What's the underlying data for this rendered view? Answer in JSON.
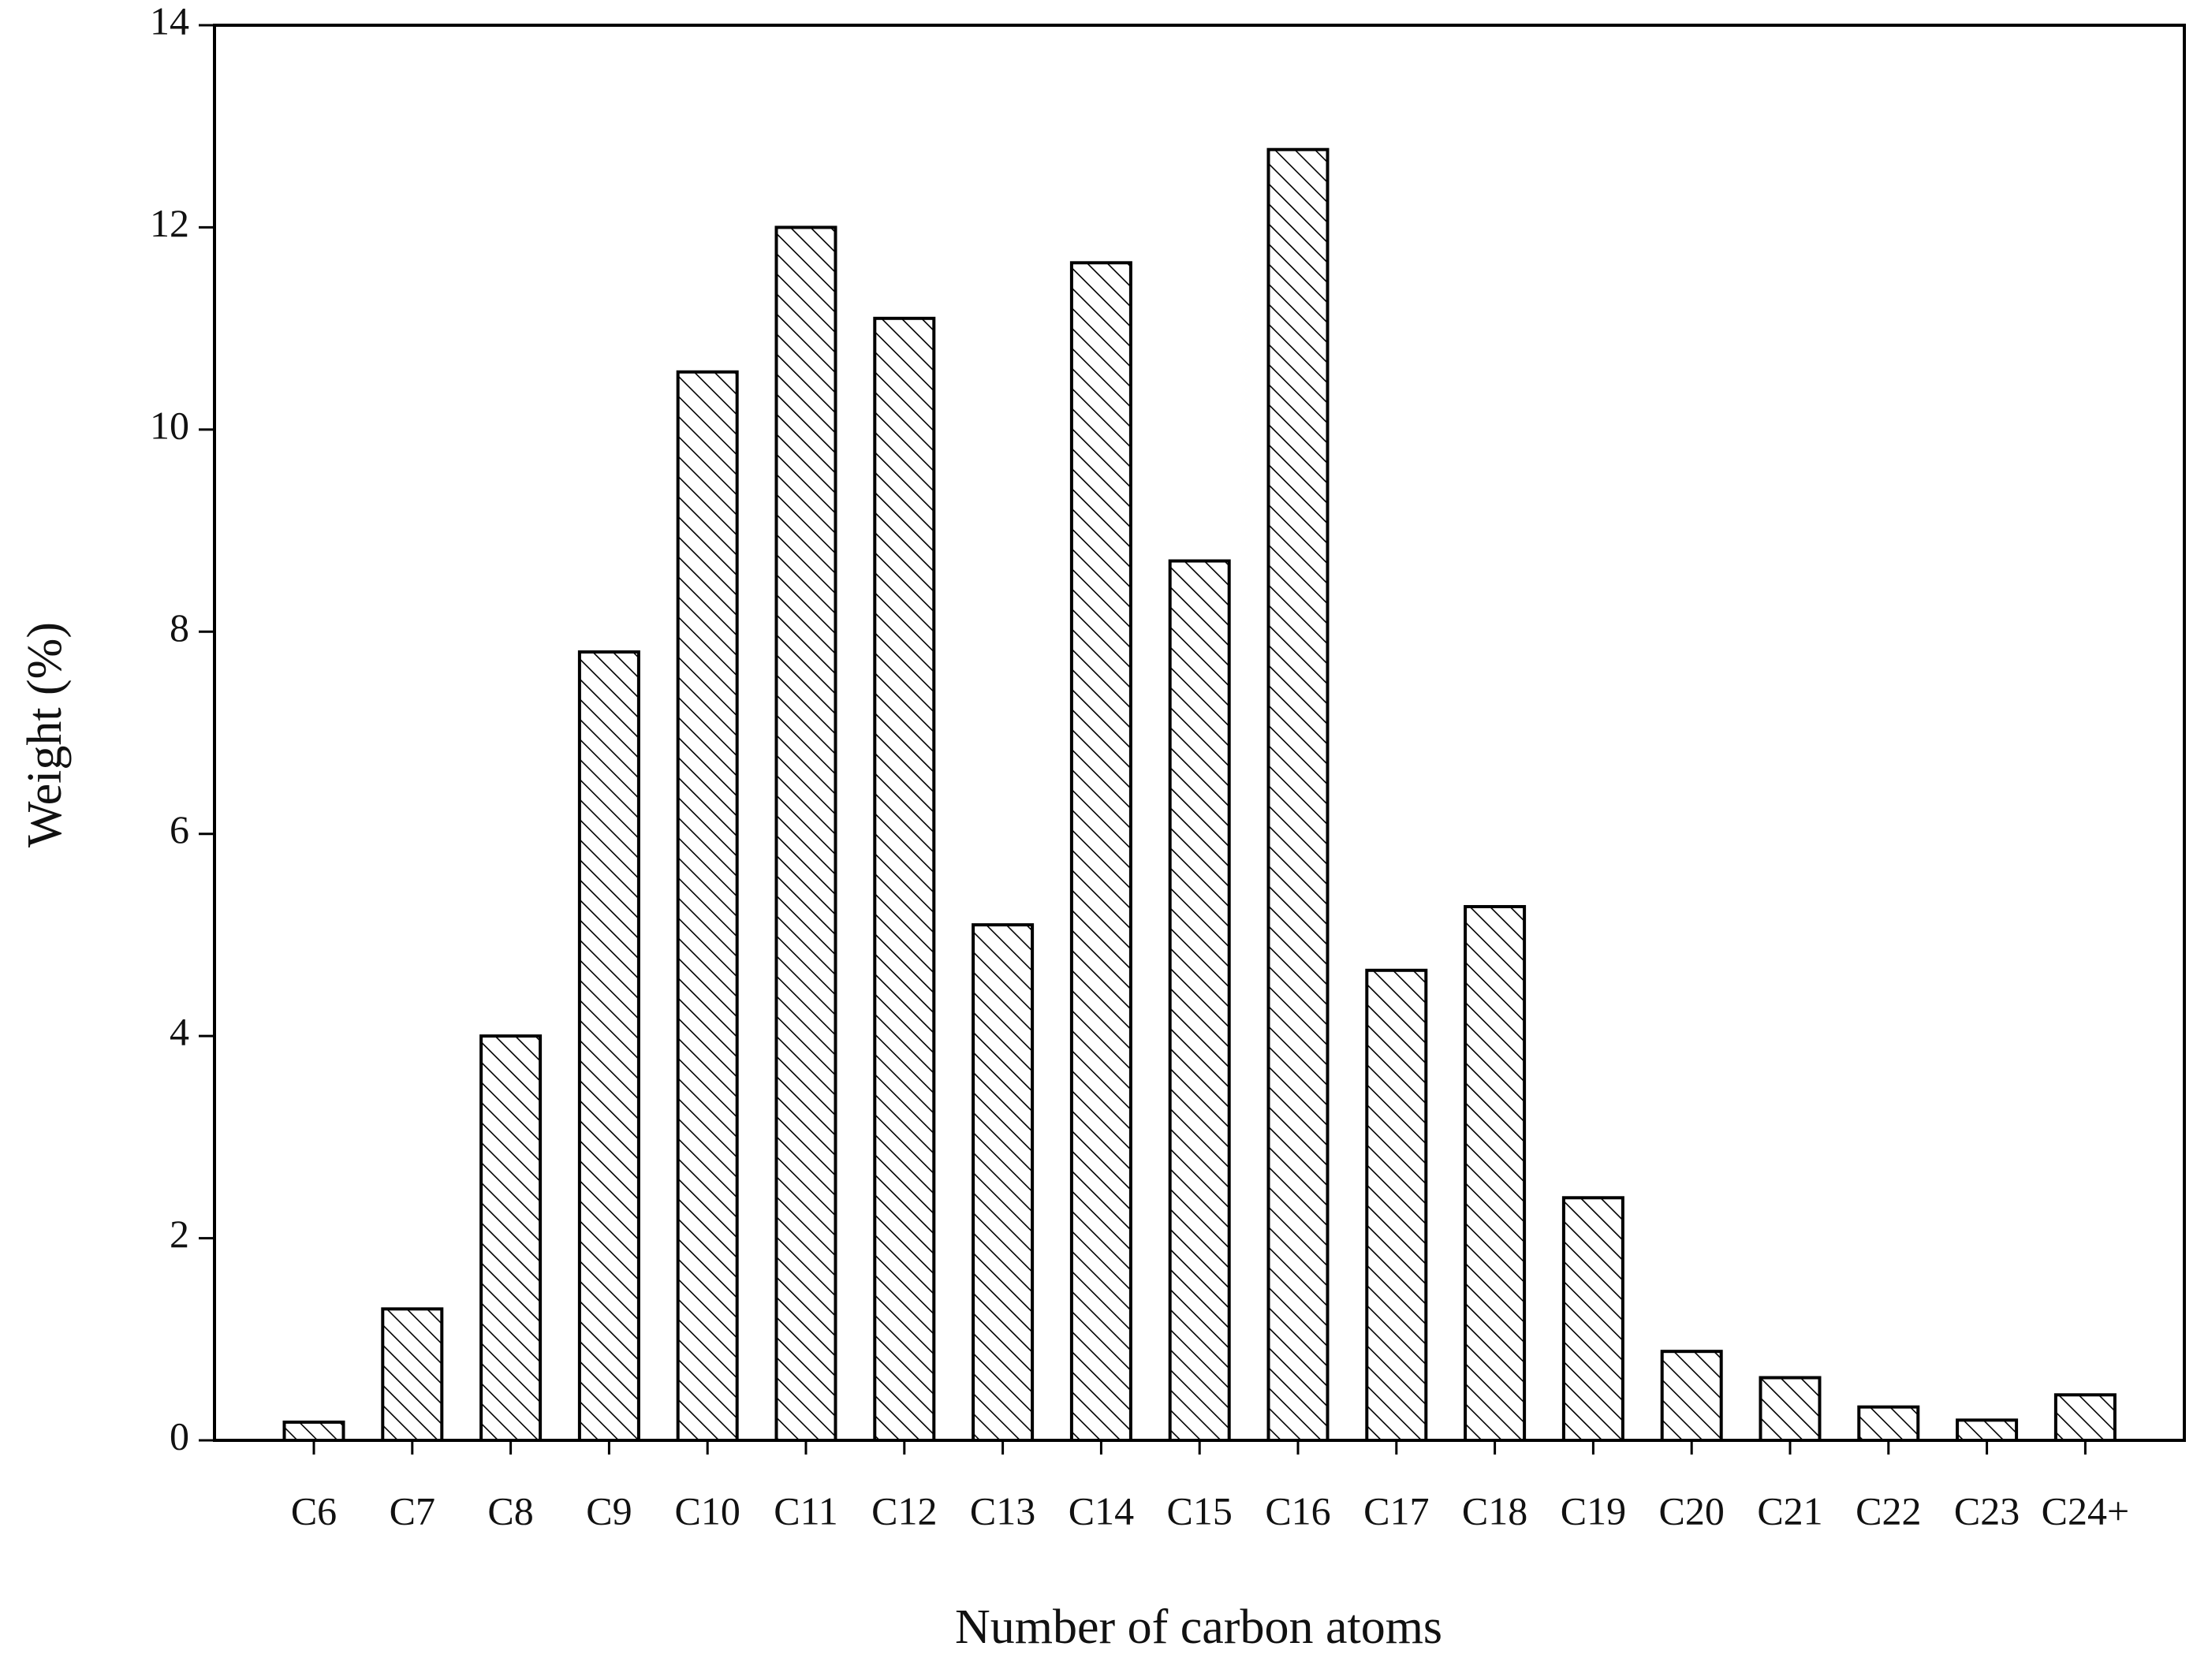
{
  "chart_data": {
    "type": "bar",
    "x_label": "Number of carbon atoms",
    "y_label": "Weight (%)",
    "categories": [
      "C6",
      "C7",
      "C8",
      "C9",
      "C10",
      "C11",
      "C12",
      "C13",
      "C14",
      "C15",
      "C16",
      "C17",
      "C18",
      "C19",
      "C20",
      "C21",
      "C22",
      "C23",
      "C24+"
    ],
    "values": [
      0.18,
      1.3,
      4.0,
      7.8,
      10.57,
      12.0,
      11.1,
      5.1,
      11.65,
      8.7,
      12.77,
      4.65,
      5.28,
      2.4,
      0.88,
      0.62,
      0.33,
      0.2,
      0.45
    ],
    "color": "#000000",
    "ylim": [
      0,
      14
    ],
    "yticks": [
      0,
      2,
      4,
      6,
      8,
      10,
      12,
      14
    ]
  }
}
